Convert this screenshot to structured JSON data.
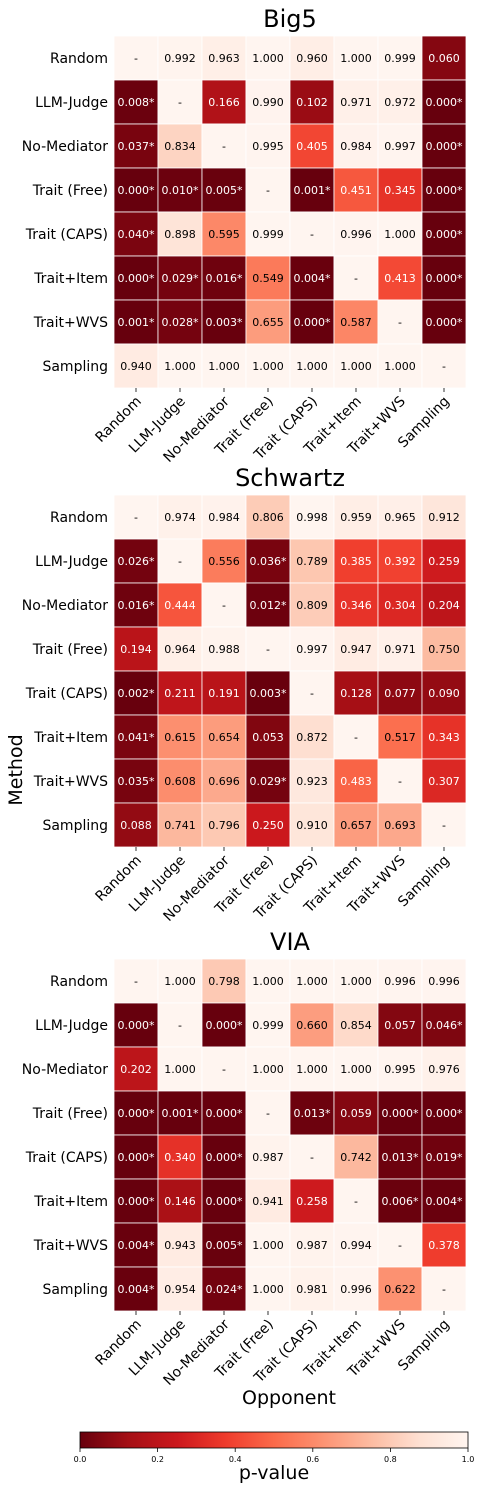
{
  "chart_data": [
    {
      "type": "heatmap",
      "title": "Big5",
      "rows": [
        "Random",
        "LLM-Judge",
        "No-Mediator",
        "Trait (Free)",
        "Trait (CAPS)",
        "Trait+Item",
        "Trait+WVS",
        "Sampling"
      ],
      "cols": [
        "Random",
        "LLM-Judge",
        "No-Mediator",
        "Trait (Free)",
        "Trait (CAPS)",
        "Trait+Item",
        "Trait+WVS",
        "Sampling"
      ],
      "labels": [
        [
          "-",
          "0.992",
          "0.963",
          "1.000",
          "0.960",
          "1.000",
          "0.999",
          "0.060"
        ],
        [
          "0.008*",
          "-",
          "0.166",
          "0.990",
          "0.102",
          "0.971",
          "0.972",
          "0.000*"
        ],
        [
          "0.037*",
          "0.834",
          "-",
          "0.995",
          "0.405",
          "0.984",
          "0.997",
          "0.000*"
        ],
        [
          "0.000*",
          "0.010*",
          "0.005*",
          "-",
          "0.001*",
          "0.451",
          "0.345",
          "0.000*"
        ],
        [
          "0.040*",
          "0.898",
          "0.595",
          "0.999",
          "-",
          "0.996",
          "1.000",
          "0.000*"
        ],
        [
          "0.000*",
          "0.029*",
          "0.016*",
          "0.549",
          "0.004*",
          "-",
          "0.413",
          "0.000*"
        ],
        [
          "0.001*",
          "0.028*",
          "0.003*",
          "0.655",
          "0.000*",
          "0.587",
          "-",
          "0.000*"
        ],
        [
          "0.940",
          "1.000",
          "1.000",
          "1.000",
          "1.000",
          "1.000",
          "1.000",
          "-"
        ]
      ]
    },
    {
      "type": "heatmap",
      "title": "Schwartz",
      "rows": [
        "Random",
        "LLM-Judge",
        "No-Mediator",
        "Trait (Free)",
        "Trait (CAPS)",
        "Trait+Item",
        "Trait+WVS",
        "Sampling"
      ],
      "cols": [
        "Random",
        "LLM-Judge",
        "No-Mediator",
        "Trait (Free)",
        "Trait (CAPS)",
        "Trait+Item",
        "Trait+WVS",
        "Sampling"
      ],
      "labels": [
        [
          "-",
          "0.974",
          "0.984",
          "0.806",
          "0.998",
          "0.959",
          "0.965",
          "0.912"
        ],
        [
          "0.026*",
          "-",
          "0.556",
          "0.036*",
          "0.789",
          "0.385",
          "0.392",
          "0.259"
        ],
        [
          "0.016*",
          "0.444",
          "-",
          "0.012*",
          "0.809",
          "0.346",
          "0.304",
          "0.204"
        ],
        [
          "0.194",
          "0.964",
          "0.988",
          "-",
          "0.997",
          "0.947",
          "0.971",
          "0.750"
        ],
        [
          "0.002*",
          "0.211",
          "0.191",
          "0.003*",
          "-",
          "0.128",
          "0.077",
          "0.090"
        ],
        [
          "0.041*",
          "0.615",
          "0.654",
          "0.053",
          "0.872",
          "-",
          "0.517",
          "0.343"
        ],
        [
          "0.035*",
          "0.608",
          "0.696",
          "0.029*",
          "0.923",
          "0.483",
          "-",
          "0.307"
        ],
        [
          "0.088",
          "0.741",
          "0.796",
          "0.250",
          "0.910",
          "0.657",
          "0.693",
          "-"
        ]
      ]
    },
    {
      "type": "heatmap",
      "title": "VIA",
      "rows": [
        "Random",
        "LLM-Judge",
        "No-Mediator",
        "Trait (Free)",
        "Trait (CAPS)",
        "Trait+Item",
        "Trait+WVS",
        "Sampling"
      ],
      "cols": [
        "Random",
        "LLM-Judge",
        "No-Mediator",
        "Trait (Free)",
        "Trait (CAPS)",
        "Trait+Item",
        "Trait+WVS",
        "Sampling"
      ],
      "labels": [
        [
          "-",
          "1.000",
          "0.798",
          "1.000",
          "1.000",
          "1.000",
          "0.996",
          "0.996"
        ],
        [
          "0.000*",
          "-",
          "0.000*",
          "0.999",
          "0.660",
          "0.854",
          "0.057",
          "0.046*"
        ],
        [
          "0.202",
          "1.000",
          "-",
          "1.000",
          "1.000",
          "1.000",
          "0.995",
          "0.976"
        ],
        [
          "0.000*",
          "0.001*",
          "0.000*",
          "-",
          "0.013*",
          "0.059",
          "0.000*",
          "0.000*"
        ],
        [
          "0.000*",
          "0.340",
          "0.000*",
          "0.987",
          "-",
          "0.742",
          "0.013*",
          "0.019*"
        ],
        [
          "0.000*",
          "0.146",
          "0.000*",
          "0.941",
          "0.258",
          "-",
          "0.006*",
          "0.004*"
        ],
        [
          "0.004*",
          "0.943",
          "0.005*",
          "1.000",
          "0.987",
          "0.994",
          "-",
          "0.378"
        ],
        [
          "0.004*",
          "0.954",
          "0.024*",
          "1.000",
          "0.981",
          "0.996",
          "0.622",
          "-"
        ]
      ]
    }
  ],
  "ylabel": "Method",
  "xlabel": "Opponent",
  "colorbar": {
    "label": "p-value",
    "range": [
      0.0,
      1.0
    ],
    "ticks": [
      "0.0",
      "0.2",
      "0.4",
      "0.6",
      "0.8",
      "1.0"
    ],
    "colormap": "Reds_r"
  }
}
